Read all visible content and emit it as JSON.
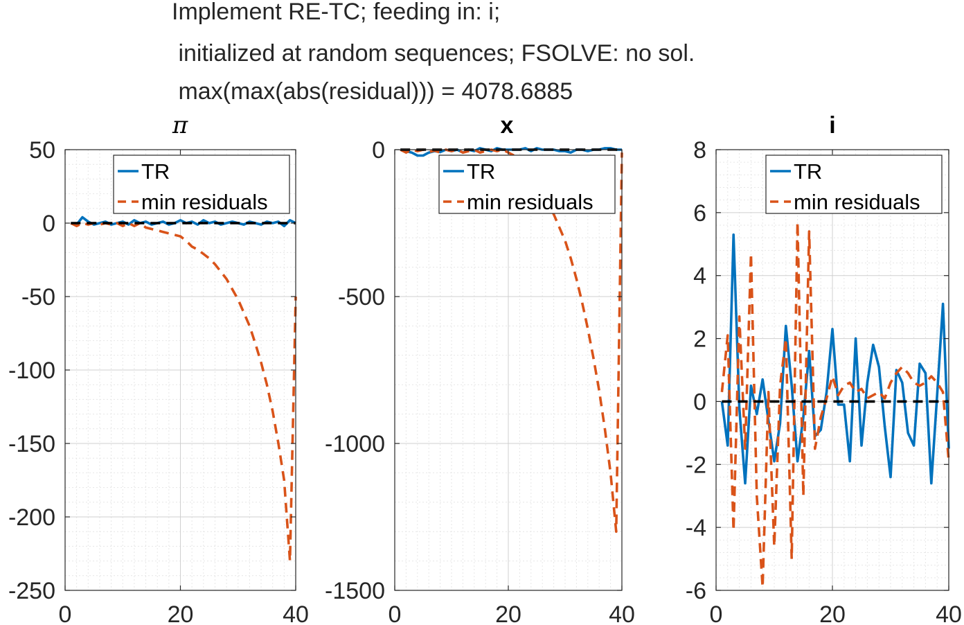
{
  "figure": {
    "title_lines": [
      "Implement RE-TC; feeding in: i;",
      " initialized at random sequences; FSOLVE: no sol.",
      " max(max(abs(residual))) = 4078.6885"
    ]
  },
  "colors": {
    "tr": "#0072BD",
    "min_residuals": "#D95319",
    "zero_line": "#000000"
  },
  "legend": {
    "entries": [
      "TR",
      "min residuals"
    ],
    "placement": "top-right"
  },
  "chart_data": [
    {
      "type": "line",
      "title": "π",
      "xlim": [
        0,
        40
      ],
      "ylim": [
        -250,
        50
      ],
      "xticks": [
        0,
        20,
        40
      ],
      "yticks": [
        -250,
        -200,
        -150,
        -100,
        -50,
        0,
        50
      ],
      "ytick_labels": [
        "-250",
        "-200",
        "-150",
        "-100",
        "-50",
        "0",
        "50"
      ],
      "xtick_labels": [
        "0",
        "20",
        "40"
      ],
      "grid": true,
      "series": [
        {
          "name": "TR",
          "style": "solid",
          "x": [
            1,
            2,
            3,
            4,
            5,
            6,
            7,
            8,
            9,
            10,
            11,
            12,
            13,
            14,
            15,
            16,
            17,
            18,
            19,
            20,
            21,
            22,
            23,
            24,
            25,
            26,
            27,
            28,
            29,
            30,
            31,
            32,
            33,
            34,
            35,
            36,
            37,
            38,
            39,
            40
          ],
          "y": [
            0,
            -1,
            4,
            1,
            -1,
            0,
            1,
            -1,
            0,
            1,
            -1,
            2,
            0,
            1,
            -1,
            0,
            1,
            -1,
            0,
            2,
            0,
            1,
            -1,
            2,
            0,
            1,
            -1,
            0,
            1,
            0,
            -1,
            1,
            0,
            -1,
            1,
            0,
            1,
            -2,
            2,
            0
          ]
        },
        {
          "name": "min residuals",
          "style": "dashed",
          "x": [
            1,
            2,
            3,
            4,
            5,
            6,
            7,
            8,
            9,
            10,
            11,
            12,
            13,
            14,
            15,
            16,
            17,
            18,
            19,
            20,
            21,
            22,
            23,
            24,
            25,
            26,
            27,
            28,
            29,
            30,
            31,
            32,
            33,
            34,
            35,
            36,
            37,
            38,
            39,
            40
          ],
          "y": [
            0,
            -2,
            0,
            -1,
            0,
            -1,
            0,
            -1,
            0,
            -2,
            0,
            -2,
            0,
            -3,
            -4,
            -5,
            -6,
            -7,
            -8,
            -9,
            -12,
            -16,
            -18,
            -21,
            -24,
            -28,
            -33,
            -38,
            -45,
            -52,
            -61,
            -70,
            -82,
            -95,
            -110,
            -128,
            -150,
            -175,
            -230,
            -50
          ]
        },
        {
          "name": "",
          "style": "dashed-black",
          "x": [
            1,
            40
          ],
          "y": [
            0,
            0
          ]
        }
      ]
    },
    {
      "type": "line",
      "title": "x",
      "xlim": [
        0,
        40
      ],
      "ylim": [
        -1500,
        0
      ],
      "xticks": [
        0,
        20,
        40
      ],
      "yticks": [
        -1500,
        -1000,
        -500,
        0
      ],
      "ytick_labels": [
        "-1500",
        "-1000",
        "-500",
        "0"
      ],
      "xtick_labels": [
        "0",
        "20",
        "40"
      ],
      "grid": true,
      "series": [
        {
          "name": "TR",
          "style": "solid",
          "x": [
            1,
            2,
            3,
            4,
            5,
            6,
            7,
            8,
            9,
            10,
            11,
            12,
            13,
            14,
            15,
            16,
            17,
            18,
            19,
            20,
            21,
            22,
            23,
            24,
            25,
            26,
            27,
            28,
            29,
            30,
            31,
            32,
            33,
            34,
            35,
            36,
            37,
            38,
            39,
            40
          ],
          "y": [
            0,
            -5,
            -10,
            -20,
            -20,
            -10,
            -5,
            -8,
            0,
            -5,
            0,
            -10,
            0,
            -5,
            5,
            0,
            -5,
            5,
            0,
            0,
            0,
            0,
            5,
            -5,
            5,
            0,
            0,
            0,
            -5,
            -5,
            -10,
            0,
            0,
            -5,
            0,
            0,
            5,
            5,
            0,
            0
          ]
        },
        {
          "name": "min residuals",
          "style": "dashed",
          "x": [
            1,
            2,
            3,
            4,
            5,
            6,
            7,
            8,
            9,
            10,
            11,
            12,
            13,
            14,
            15,
            16,
            17,
            18,
            19,
            20,
            21,
            22,
            23,
            24,
            25,
            26,
            27,
            28,
            29,
            30,
            31,
            32,
            33,
            34,
            35,
            36,
            37,
            38,
            39,
            40
          ],
          "y": [
            0,
            -10,
            0,
            -5,
            0,
            -8,
            -3,
            -10,
            0,
            -5,
            0,
            -10,
            -5,
            0,
            -10,
            -5,
            0,
            -5,
            0,
            -10,
            -20,
            -30,
            -50,
            -70,
            -100,
            -140,
            -180,
            -220,
            -265,
            -310,
            -370,
            -440,
            -520,
            -610,
            -710,
            -820,
            -950,
            -1100,
            -1300,
            -10
          ]
        },
        {
          "name": "",
          "style": "dashed-black",
          "x": [
            1,
            40
          ],
          "y": [
            0,
            0
          ]
        }
      ]
    },
    {
      "type": "line",
      "title": "i",
      "xlim": [
        0,
        40
      ],
      "ylim": [
        -6,
        8
      ],
      "xticks": [
        0,
        20,
        40
      ],
      "yticks": [
        -6,
        -4,
        -2,
        0,
        2,
        4,
        6,
        8
      ],
      "ytick_labels": [
        "-6",
        "-4",
        "-2",
        "0",
        "2",
        "4",
        "6",
        "8"
      ],
      "xtick_labels": [
        "0",
        "20",
        "40"
      ],
      "grid": true,
      "series": [
        {
          "name": "TR",
          "style": "solid",
          "x": [
            1,
            2,
            3,
            4,
            5,
            6,
            7,
            8,
            9,
            10,
            11,
            12,
            13,
            14,
            15,
            16,
            17,
            18,
            19,
            20,
            21,
            22,
            23,
            24,
            25,
            26,
            27,
            28,
            29,
            30,
            31,
            32,
            33,
            34,
            35,
            36,
            37,
            38,
            39,
            40
          ],
          "y": [
            0,
            -1.4,
            5.3,
            -0.2,
            -2.6,
            0.5,
            -0.4,
            0.7,
            -0.6,
            -1.9,
            -0.7,
            2.4,
            0.5,
            -1.9,
            -0.5,
            1.6,
            -1.1,
            -0.9,
            0.3,
            2.3,
            -0.1,
            -0.1,
            -1.9,
            2.0,
            -1.4,
            0.6,
            1.8,
            1.1,
            -0.8,
            -2.4,
            1.0,
            0.6,
            -1.0,
            -1.4,
            1.2,
            0.9,
            -2.6,
            0.2,
            3.1,
            -1.5
          ]
        },
        {
          "name": "min residuals",
          "style": "dashed",
          "x": [
            1,
            2,
            3,
            4,
            5,
            6,
            7,
            8,
            9,
            10,
            11,
            12,
            13,
            14,
            15,
            16,
            17,
            18,
            19,
            20,
            21,
            22,
            23,
            24,
            25,
            26,
            27,
            28,
            29,
            30,
            31,
            32,
            33,
            34,
            35,
            36,
            37,
            38,
            39,
            40
          ],
          "y": [
            0.3,
            2.1,
            -4.1,
            2.7,
            -1.5,
            4.7,
            -3.0,
            -5.9,
            0.3,
            -4.6,
            0.5,
            2.0,
            -5.0,
            5.7,
            -3.0,
            5.4,
            -1.5,
            -0.5,
            0.1,
            0.8,
            0.2,
            0.5,
            0.6,
            0.3,
            0.4,
            0.1,
            0.2,
            0.3,
            0.1,
            0.6,
            0.9,
            1.1,
            0.9,
            0.6,
            0.5,
            0.6,
            0.8,
            0.6,
            0.3,
            -1.9
          ]
        },
        {
          "name": "",
          "style": "dashed-black",
          "x": [
            1,
            40
          ],
          "y": [
            0,
            0
          ]
        }
      ]
    }
  ]
}
